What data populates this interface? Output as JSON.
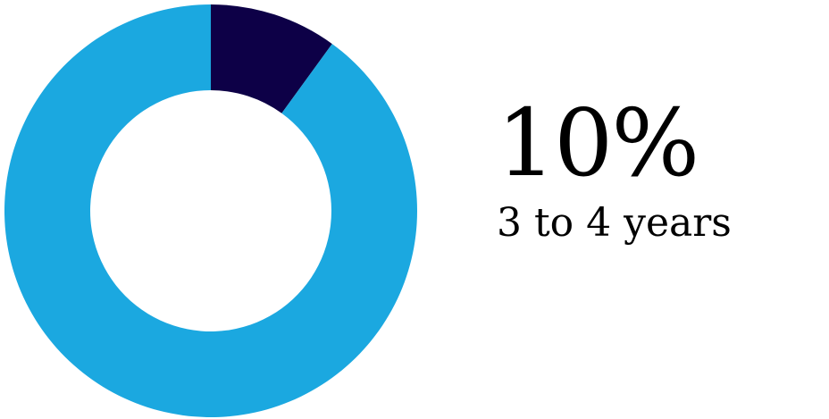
{
  "chart_data": {
    "type": "pie",
    "variant": "donut",
    "slices": [
      {
        "label": "3 to 4 years",
        "value": 10,
        "color": "#0d0047"
      },
      {
        "label": "",
        "value": 90,
        "color": "#1ba8e0"
      }
    ],
    "start_angle_deg": 0,
    "direction": "clockwise",
    "grid": false,
    "legend": "none"
  },
  "stat": {
    "value": "10%",
    "label": "3 to 4 years"
  }
}
